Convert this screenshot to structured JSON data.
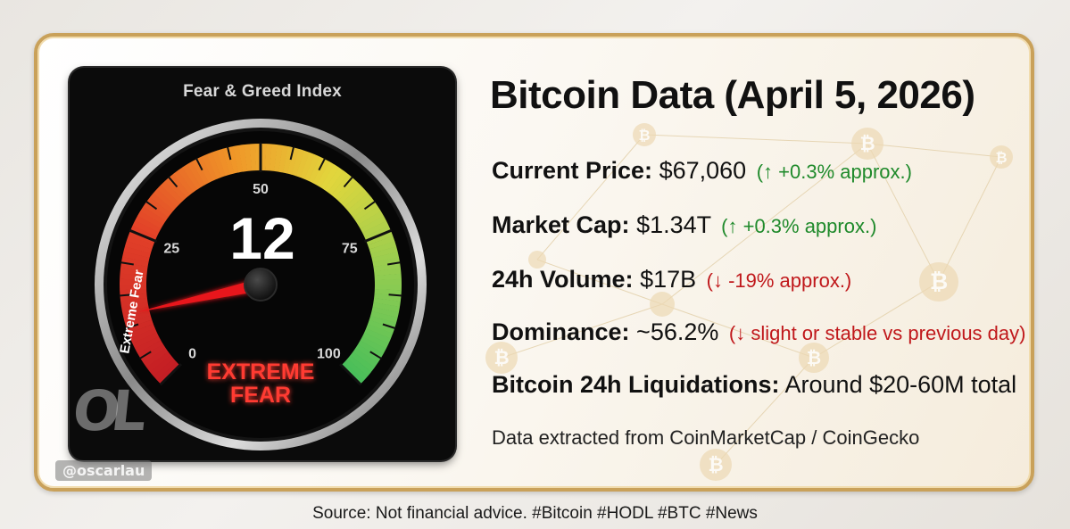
{
  "gauge": {
    "title": "Fear & Greed Index",
    "value": 12,
    "scale_min": 0,
    "scale_max": 100,
    "tick_labels": [
      "0",
      "25",
      "50",
      "75",
      "100"
    ],
    "zone_label": "Extreme Fear",
    "status_line1": "EXTREME",
    "status_line2": "FEAR"
  },
  "headline": "Bitcoin Data (April 5, 2026)",
  "stats": {
    "price": {
      "label": "Current Price:",
      "value": "$67,060",
      "change": "(↑ +0.3% approx.)",
      "direction": "up"
    },
    "market_cap": {
      "label": "Market Cap:",
      "value": "$1.34T",
      "change": "(↑ +0.3% approx.)",
      "direction": "up"
    },
    "volume": {
      "label": "24h Volume:",
      "value": "$17B",
      "change": "(↓ -19% approx.)",
      "direction": "down"
    },
    "dominance": {
      "label": "Dominance:",
      "value": "~56.2%",
      "change": "(↓ slight or stable vs previous day)",
      "direction": "down"
    },
    "liquidations": {
      "label": "Bitcoin 24h Liquidations:",
      "value": "Around $20-60M total"
    }
  },
  "extract_note": "Data extracted from CoinMarketCap / CoinGecko",
  "source_note": "Source: Not financial advice. #Bitcoin #HODL #BTC #News",
  "watermark": {
    "logo": "OL",
    "handle": "@oscarlau"
  },
  "colors": {
    "up": "#1f8a2b",
    "down": "#c0181b",
    "frame_gold": "#c9a15a",
    "fear_red": "#ff3b30"
  }
}
